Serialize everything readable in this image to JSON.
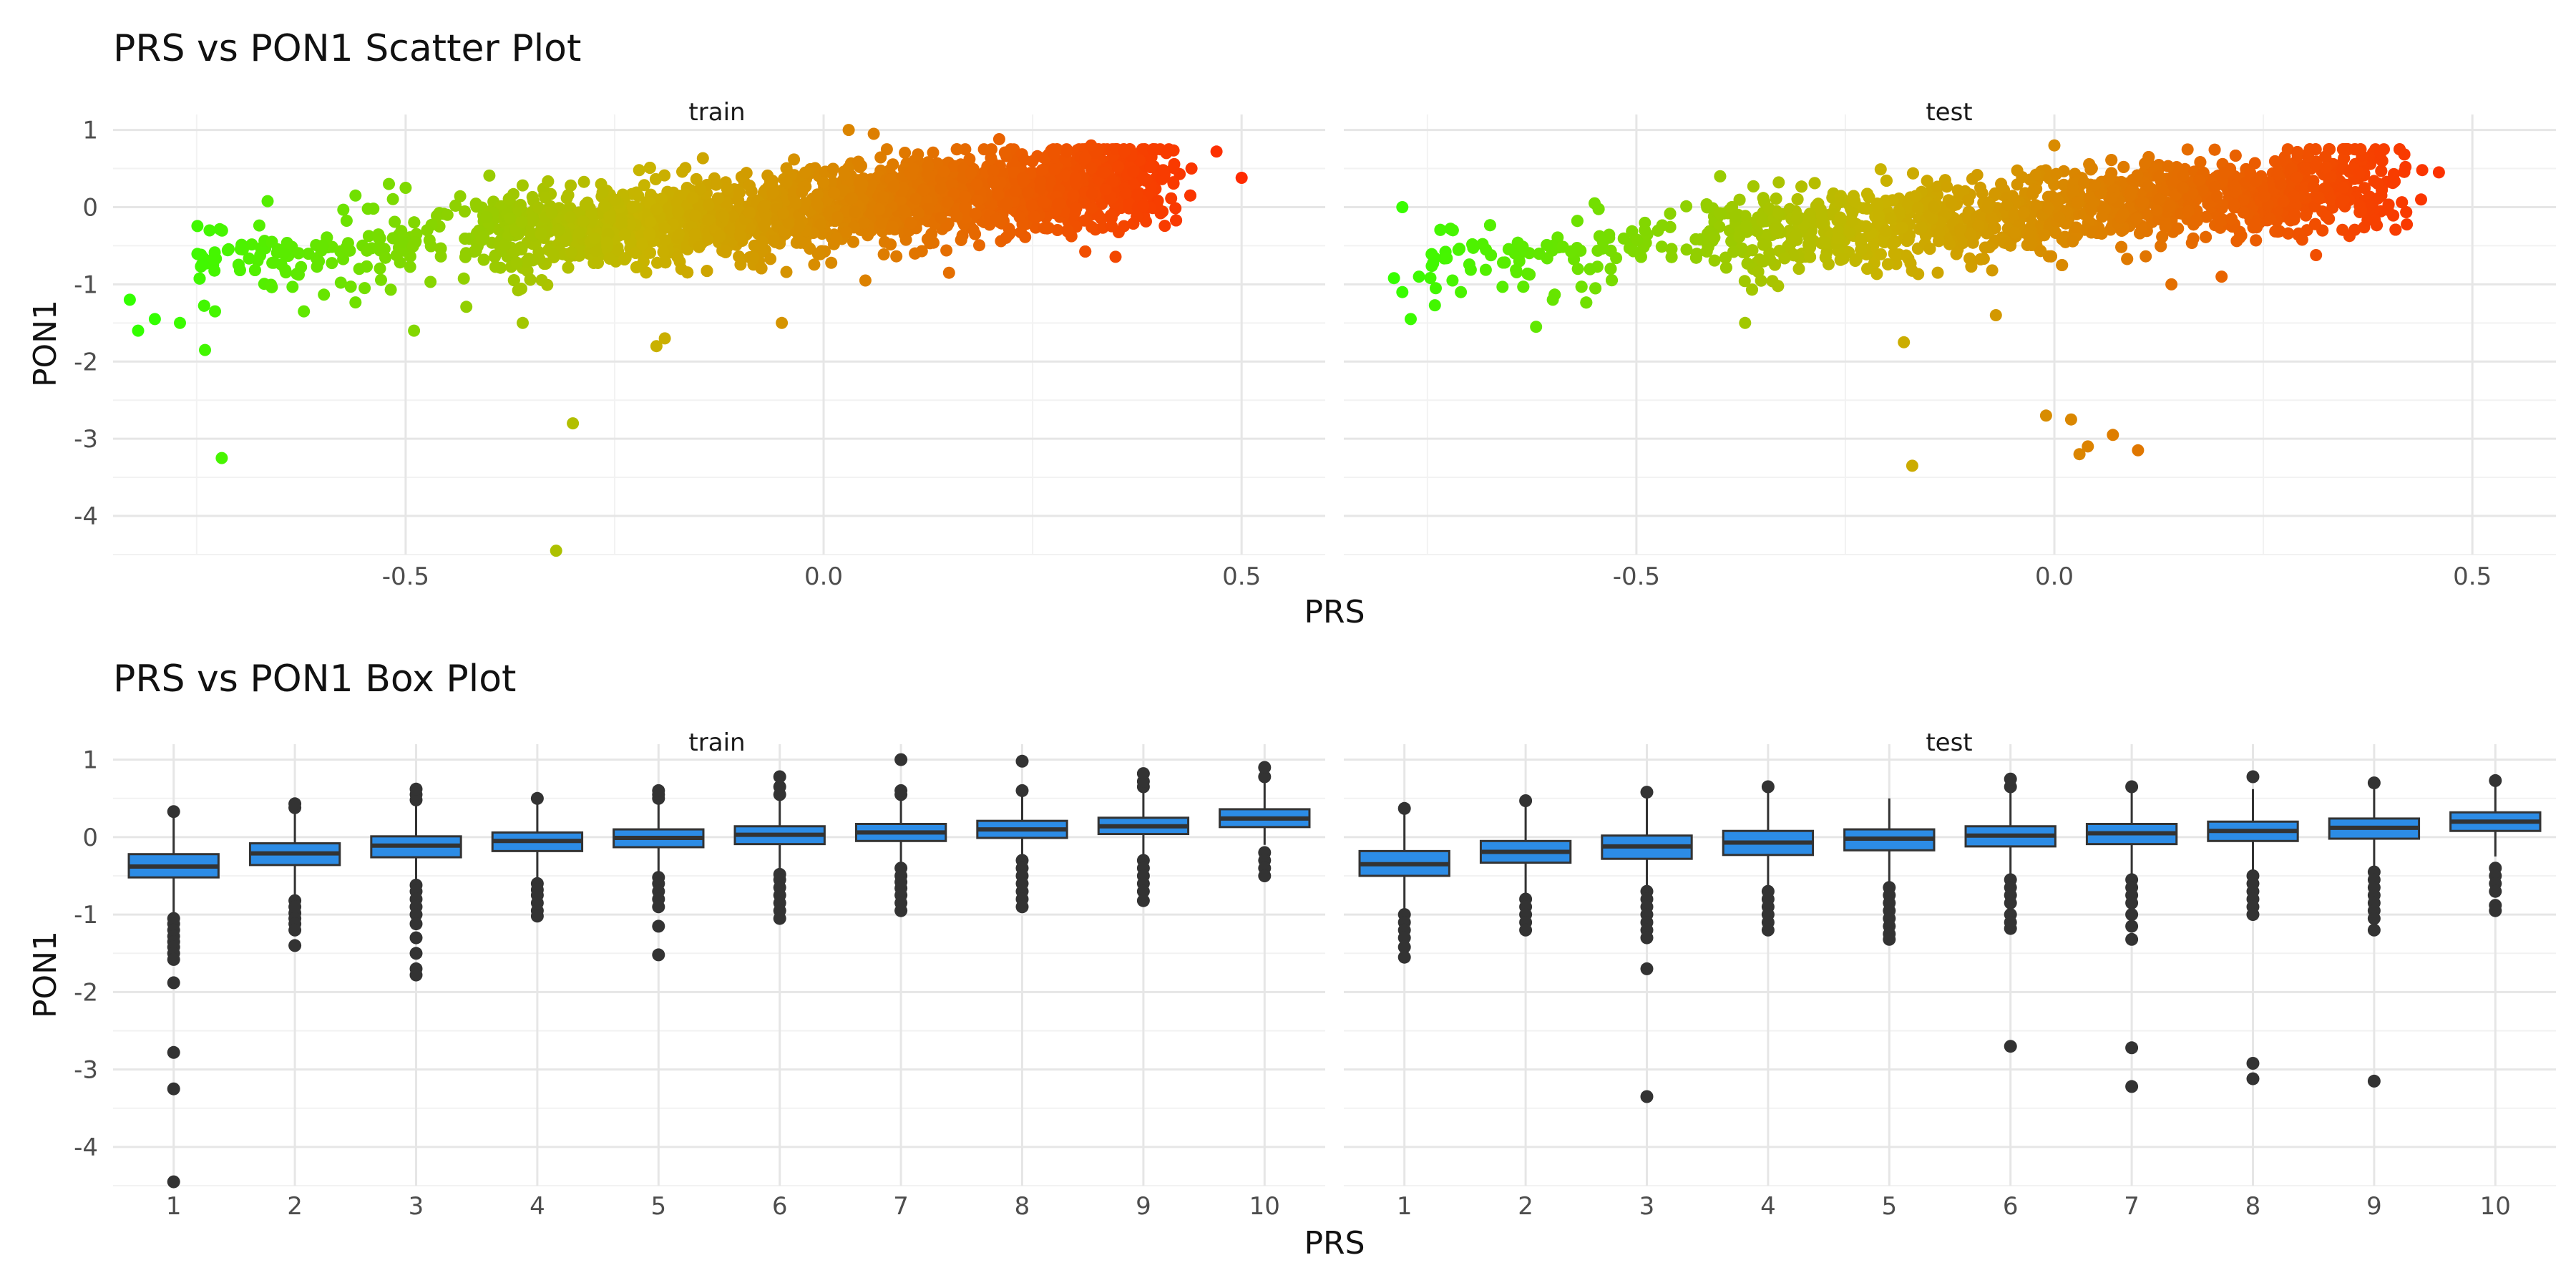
{
  "chart_data": [
    {
      "type": "scatter",
      "title": "PRS vs PON1 Scatter Plot",
      "xlabel": "PRS",
      "ylabel": "PON1",
      "xlim": [
        -0.85,
        0.6
      ],
      "ylim": [
        -4.5,
        1.2
      ],
      "xticks": [
        -0.5,
        0.0,
        0.5
      ],
      "xtick_labels": [
        "-0.5",
        "0.0",
        "0.5"
      ],
      "yticks": [
        1,
        0,
        -1,
        -2,
        -3,
        -4
      ],
      "ytick_labels": [
        "1",
        "0",
        "-1",
        "-2",
        "-3",
        "-4"
      ],
      "grid": true,
      "color_scale": {
        "low": "#33ff00",
        "mid": "#c8b400",
        "high": "#ff2a00",
        "maps": "PRS"
      },
      "panels": [
        {
          "name": "train",
          "trend": {
            "intercept": -0.02,
            "slope": 0.95
          },
          "outliers": [
            [
              -0.82,
              -1.6
            ],
            [
              -0.8,
              -1.45
            ],
            [
              -0.83,
              -1.2
            ],
            [
              -0.77,
              -1.5
            ],
            [
              -0.74,
              -1.85
            ],
            [
              -0.72,
              -3.25
            ],
            [
              -0.72,
              -0.3
            ],
            [
              -0.66,
              -0.45
            ],
            [
              -0.3,
              -2.8
            ],
            [
              -0.32,
              -4.45
            ],
            [
              -0.49,
              -1.6
            ],
            [
              -0.36,
              -1.5
            ],
            [
              -0.2,
              -1.8
            ],
            [
              -0.19,
              -1.7
            ],
            [
              -0.05,
              -1.5
            ],
            [
              0.15,
              -0.85
            ],
            [
              0.05,
              -0.95
            ],
            [
              0.03,
              1.0
            ],
            [
              0.06,
              0.95
            ],
            [
              0.21,
              0.88
            ],
            [
              0.32,
              0.8
            ],
            [
              0.36,
              0.72
            ],
            [
              0.41,
              0.7
            ],
            [
              0.44,
              0.5
            ],
            [
              0.47,
              0.72
            ],
            [
              0.5,
              0.38
            ],
            [
              -0.52,
              0.3
            ],
            [
              -0.5,
              0.25
            ],
            [
              -0.45,
              -0.1
            ],
            [
              -0.56,
              0.15
            ]
          ]
        },
        {
          "name": "test",
          "trend": {
            "intercept": -0.05,
            "slope": 0.9
          },
          "outliers": [
            [
              -0.79,
              -0.92
            ],
            [
              -0.78,
              -1.1
            ],
            [
              -0.76,
              -0.9
            ],
            [
              -0.74,
              -1.05
            ],
            [
              -0.72,
              -0.95
            ],
            [
              -0.77,
              -1.45
            ],
            [
              -0.71,
              -1.1
            ],
            [
              -0.68,
              -0.55
            ],
            [
              -0.64,
              -0.7
            ],
            [
              -0.62,
              -1.55
            ],
            [
              -0.6,
              -1.2
            ],
            [
              -0.57,
              -0.8
            ],
            [
              -0.54,
              -0.45
            ],
            [
              -0.49,
              -0.3
            ],
            [
              -0.44,
              -0.55
            ],
            [
              -0.37,
              -1.5
            ],
            [
              -0.18,
              -1.75
            ],
            [
              -0.17,
              -3.35
            ],
            [
              -0.07,
              -1.4
            ],
            [
              -0.01,
              -2.7
            ],
            [
              0.02,
              -2.75
            ],
            [
              0.03,
              -3.2
            ],
            [
              0.04,
              -3.1
            ],
            [
              0.07,
              -2.95
            ],
            [
              0.1,
              -3.15
            ],
            [
              0.14,
              -1.0
            ],
            [
              0.2,
              -0.9
            ],
            [
              0.0,
              0.8
            ],
            [
              0.36,
              0.75
            ],
            [
              0.39,
              0.7
            ],
            [
              0.42,
              0.52
            ],
            [
              0.44,
              0.48
            ],
            [
              0.46,
              0.45
            ],
            [
              -0.78,
              0.0
            ],
            [
              -0.55,
              0.05
            ]
          ]
        }
      ]
    },
    {
      "type": "box",
      "title": "PRS vs PON1 Box Plot",
      "xlabel": "PRS",
      "ylabel": "PON1",
      "ylim": [
        -4.5,
        1.2
      ],
      "yticks": [
        1,
        0,
        -1,
        -2,
        -3,
        -4
      ],
      "ytick_labels": [
        "1",
        "0",
        "-1",
        "-2",
        "-3",
        "-4"
      ],
      "categories": [
        "1",
        "2",
        "3",
        "4",
        "5",
        "6",
        "7",
        "8",
        "9",
        "10"
      ],
      "grid": true,
      "box_fill": "#2c8ce6",
      "box_stroke": "#333333",
      "panels": [
        {
          "name": "train",
          "boxes": [
            {
              "q1": -0.52,
              "median": -0.38,
              "q3": -0.22,
              "lower": -1.0,
              "upper": 0.3,
              "outliers": [
                0.33,
                -1.05,
                -1.12,
                -1.2,
                -1.28,
                -1.35,
                -1.42,
                -1.5,
                -1.58,
                -1.88,
                -2.78,
                -3.25,
                -4.45
              ]
            },
            {
              "q1": -0.36,
              "median": -0.21,
              "q3": -0.08,
              "lower": -0.8,
              "upper": 0.35,
              "outliers": [
                0.38,
                0.43,
                -0.82,
                -0.9,
                -0.98,
                -1.05,
                -1.12,
                -1.2,
                -1.4
              ]
            },
            {
              "q1": -0.26,
              "median": -0.11,
              "q3": 0.01,
              "lower": -0.6,
              "upper": 0.42,
              "outliers": [
                0.48,
                0.55,
                0.62,
                -0.62,
                -0.7,
                -0.8,
                -0.9,
                -1.0,
                -1.12,
                -1.3,
                -1.5,
                -1.7,
                -1.78
              ]
            },
            {
              "q1": -0.18,
              "median": -0.05,
              "q3": 0.06,
              "lower": -0.55,
              "upper": 0.45,
              "outliers": [
                0.5,
                -0.6,
                -0.68,
                -0.75,
                -0.85,
                -0.95,
                -1.02
              ]
            },
            {
              "q1": -0.13,
              "median": -0.01,
              "q3": 0.1,
              "lower": -0.48,
              "upper": 0.45,
              "outliers": [
                0.5,
                0.55,
                0.6,
                -0.52,
                -0.6,
                -0.7,
                -0.8,
                -0.9,
                -1.15,
                -1.52
              ]
            },
            {
              "q1": -0.09,
              "median": 0.03,
              "q3": 0.14,
              "lower": -0.45,
              "upper": 0.5,
              "outliers": [
                0.55,
                0.65,
                0.78,
                -0.48,
                -0.55,
                -0.65,
                -0.75,
                -0.85,
                -0.95,
                -1.05
              ]
            },
            {
              "q1": -0.05,
              "median": 0.06,
              "q3": 0.17,
              "lower": -0.38,
              "upper": 0.52,
              "outliers": [
                0.55,
                0.6,
                1.0,
                -0.4,
                -0.5,
                -0.58,
                -0.66,
                -0.75,
                -0.85,
                -0.95
              ]
            },
            {
              "q1": -0.01,
              "median": 0.1,
              "q3": 0.21,
              "lower": -0.3,
              "upper": 0.55,
              "outliers": [
                0.6,
                0.98,
                -0.3,
                -0.4,
                -0.5,
                -0.6,
                -0.7,
                -0.8,
                -0.9
              ]
            },
            {
              "q1": 0.04,
              "median": 0.14,
              "q3": 0.25,
              "lower": -0.25,
              "upper": 0.6,
              "outliers": [
                0.65,
                0.72,
                0.82,
                -0.3,
                -0.4,
                -0.5,
                -0.6,
                -0.7,
                -0.82
              ]
            },
            {
              "q1": 0.13,
              "median": 0.24,
              "q3": 0.36,
              "lower": -0.1,
              "upper": 0.7,
              "outliers": [
                0.78,
                0.9,
                -0.2,
                -0.3,
                -0.4,
                -0.5
              ]
            }
          ]
        },
        {
          "name": "test",
          "boxes": [
            {
              "q1": -0.5,
              "median": -0.35,
              "q3": -0.18,
              "lower": -0.95,
              "upper": 0.33,
              "outliers": [
                0.37,
                -1.0,
                -1.1,
                -1.2,
                -1.3,
                -1.42,
                -1.55
              ]
            },
            {
              "q1": -0.33,
              "median": -0.19,
              "q3": -0.05,
              "lower": -0.75,
              "upper": 0.42,
              "outliers": [
                0.47,
                -0.8,
                -0.9,
                -1.0,
                -1.1,
                -1.2
              ]
            },
            {
              "q1": -0.28,
              "median": -0.12,
              "q3": 0.02,
              "lower": -0.65,
              "upper": 0.52,
              "outliers": [
                0.58,
                -0.7,
                -0.8,
                -0.9,
                -1.0,
                -1.1,
                -1.2,
                -1.3,
                -1.7,
                -3.35
              ]
            },
            {
              "q1": -0.23,
              "median": -0.07,
              "q3": 0.08,
              "lower": -0.65,
              "upper": 0.6,
              "outliers": [
                0.65,
                -0.7,
                -0.8,
                -0.9,
                -1.0,
                -1.1,
                -1.2
              ]
            },
            {
              "q1": -0.17,
              "median": -0.02,
              "q3": 0.1,
              "lower": -0.6,
              "upper": 0.5,
              "outliers": [
                -0.65,
                -0.75,
                -0.85,
                -0.95,
                -1.05,
                -1.15,
                -1.25,
                -1.32
              ]
            },
            {
              "q1": -0.12,
              "median": 0.02,
              "q3": 0.14,
              "lower": -0.52,
              "upper": 0.6,
              "outliers": [
                0.65,
                0.75,
                -0.55,
                -0.65,
                -0.75,
                -0.85,
                -1.0,
                -1.1,
                -1.18,
                -2.7
              ]
            },
            {
              "q1": -0.09,
              "median": 0.05,
              "q3": 0.17,
              "lower": -0.5,
              "upper": 0.6,
              "outliers": [
                0.65,
                -0.55,
                -0.65,
                -0.75,
                -0.85,
                -1.0,
                -1.15,
                -1.32,
                -2.72,
                -3.22
              ]
            },
            {
              "q1": -0.05,
              "median": 0.08,
              "q3": 0.2,
              "lower": -0.45,
              "upper": 0.62,
              "outliers": [
                0.78,
                -0.5,
                -0.6,
                -0.7,
                -0.8,
                -0.9,
                -1.0,
                -2.92,
                -3.12
              ]
            },
            {
              "q1": -0.02,
              "median": 0.12,
              "q3": 0.24,
              "lower": -0.4,
              "upper": 0.65,
              "outliers": [
                0.7,
                -0.45,
                -0.55,
                -0.65,
                -0.75,
                -0.85,
                -0.95,
                -1.05,
                -1.2,
                -3.15
              ]
            },
            {
              "q1": 0.08,
              "median": 0.2,
              "q3": 0.32,
              "lower": -0.25,
              "upper": 0.7,
              "outliers": [
                0.73,
                -0.4,
                -0.5,
                -0.6,
                -0.7,
                -0.88,
                -0.95
              ]
            }
          ]
        }
      ]
    }
  ]
}
